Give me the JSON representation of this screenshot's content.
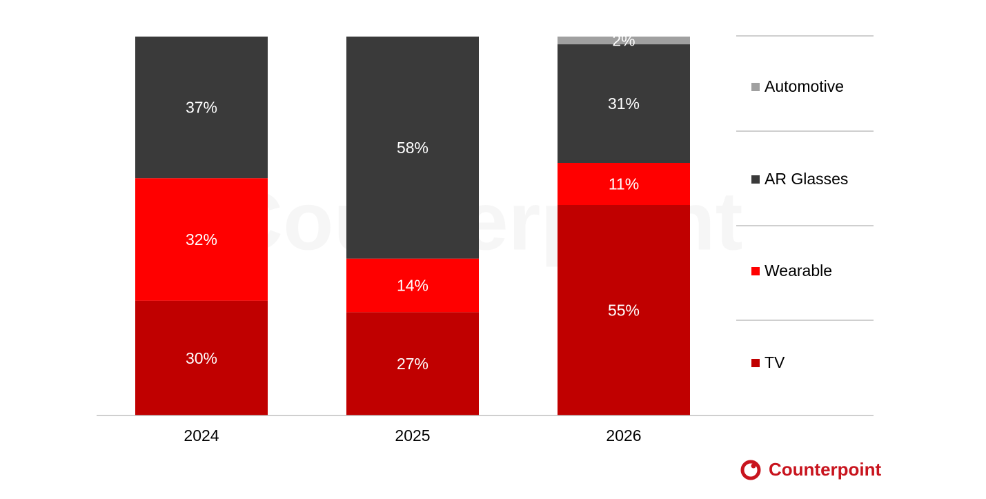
{
  "chart_data": {
    "type": "bar",
    "stacked": true,
    "normalized": true,
    "categories": [
      "2024",
      "2025",
      "2026"
    ],
    "series": [
      {
        "name": "TV",
        "color": "#C00000",
        "values": [
          30,
          27,
          55
        ],
        "labels": [
          "30%",
          "27%",
          "55%"
        ]
      },
      {
        "name": "Wearable",
        "color": "#FF0000",
        "values": [
          32,
          14,
          11
        ],
        "labels": [
          "32%",
          "14%",
          "11%"
        ]
      },
      {
        "name": "AR Glasses",
        "color": "#3A3A3A",
        "values": [
          37,
          58,
          31
        ],
        "labels": [
          "37%",
          "58%",
          "31%"
        ]
      },
      {
        "name": "Automotive",
        "color": "#A0A0A0",
        "values": [
          0,
          0,
          2
        ],
        "labels": [
          "",
          "",
          "2%"
        ]
      }
    ],
    "ylim": [
      0,
      100
    ],
    "grid": false,
    "legend_placement": "right",
    "title": "",
    "xlabel": "",
    "ylabel": ""
  },
  "branding": {
    "logo_text": "Counterpoint",
    "logo_color": "#C8141E",
    "watermark": "Counterpoint"
  }
}
